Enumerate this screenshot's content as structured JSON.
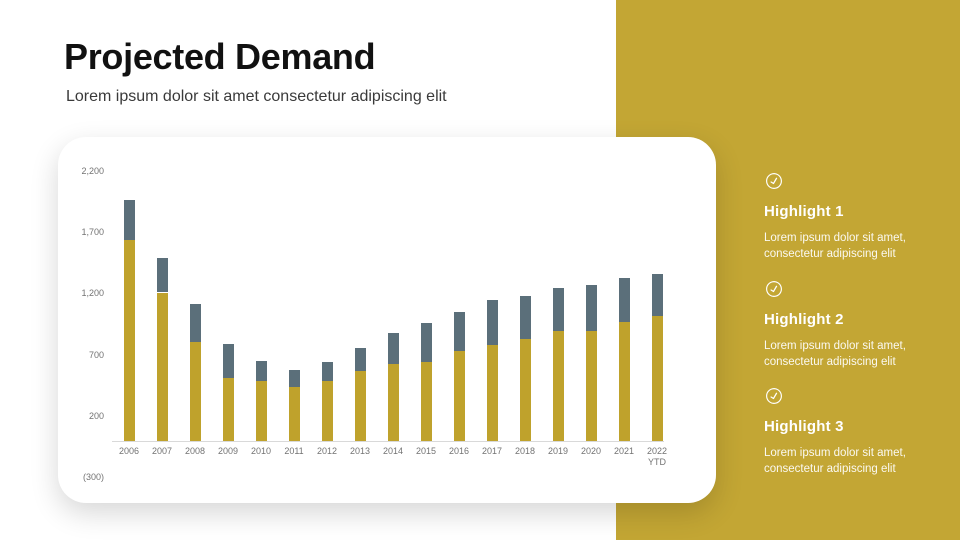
{
  "slide": {
    "title": "Projected Demand",
    "subtitle": "Lorem ipsum dolor sit amet consectetur adipiscing elit"
  },
  "colors": {
    "panel_gold": "#C3A634",
    "bar_gold": "#BFA22C",
    "bar_gray": "#5B6F7A",
    "axis_line": "#D9D9D9",
    "axis_text": "#737373",
    "title_text": "#111111",
    "highlight_text": "#FFFFFF"
  },
  "chart_data": {
    "type": "bar",
    "stacked": true,
    "title": "",
    "xlabel": "",
    "ylabel": "",
    "grid": false,
    "legend": "none",
    "ylim": [
      -300,
      2200
    ],
    "categories": [
      "2006",
      "2007",
      "2008",
      "2009",
      "2010",
      "2011",
      "2012",
      "2013",
      "2014",
      "2015",
      "2016",
      "2017",
      "2018",
      "2019",
      "2020",
      "2021",
      "2022 YTD"
    ],
    "series": [
      {
        "name": "gold-segment",
        "color": "#BFA22C",
        "values": [
          1640,
          1210,
          810,
          515,
          490,
          440,
          485,
          570,
          630,
          640,
          730,
          785,
          830,
          895,
          900,
          970,
          1015
        ]
      },
      {
        "name": "gray-segment",
        "color": "#5B6F7A",
        "values": [
          325,
          280,
          305,
          275,
          160,
          135,
          160,
          185,
          250,
          320,
          325,
          360,
          350,
          350,
          375,
          360,
          345
        ]
      }
    ],
    "totals": [
      1965,
      1490,
      1115,
      790,
      650,
      575,
      645,
      755,
      880,
      960,
      1055,
      1145,
      1180,
      1245,
      1275,
      1330,
      1360
    ],
    "y_ticks": [
      {
        "value": 2200,
        "label": "2,200"
      },
      {
        "value": 1700,
        "label": "1,700"
      },
      {
        "value": 1200,
        "label": "1,200"
      },
      {
        "value": 700,
        "label": "700"
      },
      {
        "value": 200,
        "label": "200"
      },
      {
        "value": -300,
        "label": "(300)"
      }
    ]
  },
  "highlights": {
    "items": [
      {
        "icon": "check-circle-icon",
        "title": "Highlight 1",
        "body": "Lorem ipsum dolor sit amet, consectetur adipiscing elit"
      },
      {
        "icon": "check-circle-icon",
        "title": "Highlight 2",
        "body": "Lorem ipsum dolor sit amet, consectetur adipiscing elit"
      },
      {
        "icon": "check-circle-icon",
        "title": "Highlight 3",
        "body": "Lorem ipsum dolor sit amet, consectetur adipiscing elit"
      }
    ]
  }
}
